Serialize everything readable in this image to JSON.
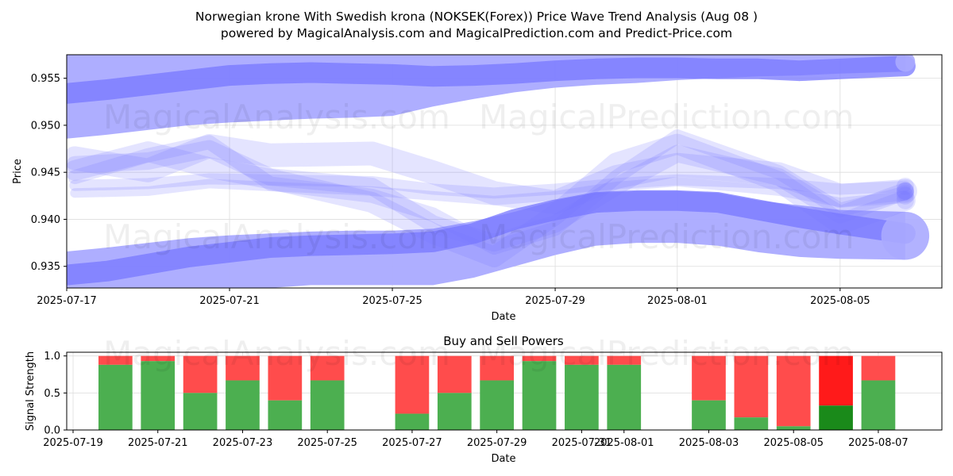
{
  "chart_data": [
    {
      "type": "area",
      "title_line1": "Norwegian krone With Swedish krona (NOKSEK(Forex)) Price Wave Trend Analysis (Aug 08 )",
      "title_line2": "powered by MagicalAnalysis.com and MagicalPrediction.com and Predict-Price.com",
      "xlabel": "Date",
      "ylabel": "Price",
      "x_ticks": [
        "2025-07-17",
        "2025-07-21",
        "2025-07-25",
        "2025-07-29",
        "2025-08-01",
        "2025-08-05"
      ],
      "y_ticks": [
        "0.935",
        "0.940",
        "0.945",
        "0.950",
        "0.955"
      ],
      "ylim": [
        0.9327,
        0.9575
      ],
      "xlim_days": [
        0,
        21.5
      ],
      "grid": true,
      "bands": [
        {
          "name": "upper",
          "x": [
            -0.2,
            1,
            3,
            4,
            5,
            6,
            7,
            8,
            9,
            10,
            11,
            12,
            13,
            14,
            15,
            16,
            17,
            18,
            19,
            20.6
          ],
          "low": [
            0.9485,
            0.949,
            0.95,
            0.9503,
            0.9505,
            0.9507,
            0.9508,
            0.951,
            0.952,
            0.9528,
            0.9535,
            0.954,
            0.9543,
            0.9545,
            0.9548,
            0.955,
            0.9552,
            0.9553,
            0.9555,
            0.9557
          ],
          "high": [
            0.9578,
            0.9578,
            0.9578,
            0.9578,
            0.9578,
            0.9578,
            0.9578,
            0.9578,
            0.9578,
            0.9578,
            0.9578,
            0.9578,
            0.9578,
            0.9578,
            0.9578,
            0.9578,
            0.9578,
            0.9578,
            0.9578,
            0.9578
          ],
          "center": [
            0.9533,
            0.9538,
            0.9548,
            0.9553,
            0.9555,
            0.9556,
            0.9555,
            0.9554,
            0.9552,
            0.9553,
            0.9555,
            0.9558,
            0.956,
            0.9561,
            0.9561,
            0.956,
            0.956,
            0.9558,
            0.956,
            0.9563
          ]
        },
        {
          "name": "lower",
          "x": [
            -0.2,
            1,
            3,
            4,
            5,
            6,
            7,
            8,
            9,
            10,
            11,
            12,
            13,
            14,
            15,
            16,
            17,
            18,
            19,
            20.6
          ],
          "low": [
            0.9327,
            0.9327,
            0.9327,
            0.9327,
            0.9327,
            0.933,
            0.933,
            0.933,
            0.933,
            0.9338,
            0.935,
            0.9362,
            0.9372,
            0.9375,
            0.9375,
            0.9372,
            0.9365,
            0.936,
            0.9358,
            0.9357
          ],
          "high": [
            0.9365,
            0.937,
            0.938,
            0.9383,
            0.9385,
            0.9387,
            0.9388,
            0.9388,
            0.939,
            0.9398,
            0.9408,
            0.942,
            0.9428,
            0.943,
            0.943,
            0.9428,
            0.942,
            0.9415,
            0.941,
            0.9408
          ],
          "center": [
            0.934,
            0.9345,
            0.936,
            0.9365,
            0.937,
            0.9372,
            0.9373,
            0.9374,
            0.9376,
            0.9385,
            0.94,
            0.941,
            0.9418,
            0.942,
            0.942,
            0.9418,
            0.941,
            0.9402,
            0.9395,
            0.9385
          ]
        }
      ],
      "waves": [
        {
          "x": [
            0.2,
            2,
            3.5,
            5,
            7.5,
            9,
            10.5,
            12,
            13.5,
            15,
            17.5,
            19,
            20.6
          ],
          "y": [
            0.9458,
            0.9462,
            0.9475,
            0.9445,
            0.9435,
            0.9395,
            0.9375,
            0.9395,
            0.9435,
            0.947,
            0.9445,
            0.9405,
            0.943
          ]
        },
        {
          "x": [
            0.2,
            2,
            3.5,
            5,
            7.5,
            9,
            10.5,
            12,
            13.5,
            15,
            17.5,
            19,
            20.6
          ],
          "y": [
            0.9445,
            0.9468,
            0.9482,
            0.9438,
            0.9425,
            0.9405,
            0.937,
            0.939,
            0.9445,
            0.9488,
            0.945,
            0.941,
            0.9428
          ]
        },
        {
          "x": [
            0.2,
            2,
            3.5,
            5,
            7.5,
            9,
            10.5,
            12,
            13.5,
            15,
            17.5,
            19,
            20.6
          ],
          "y": [
            0.9452,
            0.9472,
            0.9455,
            0.9443,
            0.9418,
            0.9385,
            0.936,
            0.9405,
            0.946,
            0.948,
            0.944,
            0.9395,
            0.942
          ]
        },
        {
          "x": [
            0.2,
            2,
            3.5,
            5,
            7.5,
            9,
            10.5,
            12,
            13.5,
            15,
            17.5,
            19,
            20.6
          ],
          "y": [
            0.9436,
            0.9438,
            0.9443,
            0.9442,
            0.944,
            0.9432,
            0.9428,
            0.9432,
            0.9438,
            0.9442,
            0.9438,
            0.9432,
            0.9435
          ]
        },
        {
          "x": [
            0.2,
            2,
            3.5,
            5,
            7.5,
            9,
            10.5,
            12,
            13.5,
            15,
            17.5,
            19,
            20.6
          ],
          "y": [
            0.9465,
            0.9452,
            0.9478,
            0.9468,
            0.947,
            0.945,
            0.9428,
            0.9418,
            0.9445,
            0.9458,
            0.9448,
            0.9425,
            0.943
          ]
        },
        {
          "x": [
            0.2,
            2,
            3.5,
            5,
            7.5,
            9,
            10.5,
            12,
            13.5,
            15,
            17.5,
            19,
            20.6
          ],
          "y": [
            0.9428,
            0.943,
            0.9438,
            0.9435,
            0.943,
            0.9425,
            0.942,
            0.9425,
            0.9435,
            0.944,
            0.943,
            0.9418,
            0.9425
          ]
        }
      ]
    },
    {
      "type": "bar",
      "title": "Buy and Sell Powers",
      "xlabel": "Date",
      "ylabel": "Signal Strength",
      "x_ticks": [
        "2025-07-19",
        "2025-07-21",
        "2025-07-23",
        "2025-07-25",
        "2025-07-27",
        "2025-07-29",
        "2025-07-31",
        "2025-08-01",
        "2025-08-03",
        "2025-08-05",
        "2025-08-07"
      ],
      "y_ticks": [
        "0.0",
        "0.5",
        "1.0"
      ],
      "ylim": [
        0,
        1.05
      ],
      "xlim_days": [
        -0.15,
        20.5
      ],
      "day_positions_of_ticks": [
        0,
        2,
        4,
        6,
        8,
        10,
        12,
        13,
        15,
        17,
        19
      ],
      "series": [
        {
          "name": "Buy",
          "color": "#4caf50"
        },
        {
          "name": "Sell",
          "color": "#ff4c4c"
        }
      ],
      "bars": [
        {
          "day": 1,
          "buy": 0.88
        },
        {
          "day": 2,
          "buy": 0.93
        },
        {
          "day": 3,
          "buy": 0.5
        },
        {
          "day": 4,
          "buy": 0.67
        },
        {
          "day": 5,
          "buy": 0.4
        },
        {
          "day": 6,
          "buy": 0.67
        },
        {
          "day": 8,
          "buy": 0.22
        },
        {
          "day": 9,
          "buy": 0.5
        },
        {
          "day": 10,
          "buy": 0.67
        },
        {
          "day": 11,
          "buy": 0.93
        },
        {
          "day": 12,
          "buy": 0.88
        },
        {
          "day": 13,
          "buy": 0.88
        },
        {
          "day": 15,
          "buy": 0.4
        },
        {
          "day": 16,
          "buy": 0.17
        },
        {
          "day": 17,
          "buy": 0.05
        },
        {
          "day": 18,
          "buy": 0.33,
          "highlight": true
        },
        {
          "day": 19,
          "buy": 0.67
        }
      ]
    }
  ],
  "watermarks": [
    "MagicalAnalysis.com",
    "MagicalPrediction.com"
  ],
  "colors": {
    "band": "#aaaaff",
    "wave": "#7777ff",
    "buy": "#4caf50",
    "sell": "#ff4c4c",
    "buy_strong": "#1a8a1a",
    "sell_strong": "#ff1a1a"
  }
}
